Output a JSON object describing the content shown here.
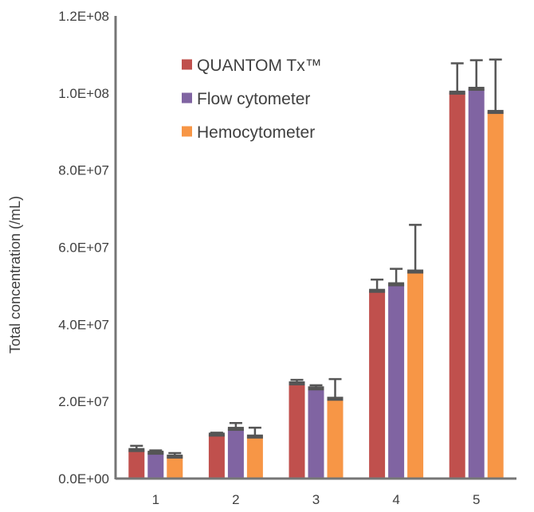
{
  "chart_data": {
    "type": "bar",
    "title": "",
    "xlabel": "",
    "ylabel": "Total concentration (/mL)",
    "ylim": [
      0,
      120000000
    ],
    "yticks": [
      {
        "value": 0,
        "label": "0.0E+00"
      },
      {
        "value": 20000000,
        "label": "2.0E+07"
      },
      {
        "value": 40000000,
        "label": "4.0E+07"
      },
      {
        "value": 60000000,
        "label": "6.0E+07"
      },
      {
        "value": 80000000,
        "label": "8.0E+07"
      },
      {
        "value": 100000000,
        "label": "1.0E+08"
      },
      {
        "value": 120000000,
        "label": "1.2E+08"
      }
    ],
    "categories": [
      "1",
      "2",
      "3",
      "4",
      "5"
    ],
    "legend_position": "top-left",
    "series": [
      {
        "name": "QUANTOM Tx™",
        "color": "#c0504d",
        "values": [
          7500000,
          11500000,
          24800000,
          48800000,
          100200000
        ],
        "errors": [
          1000000,
          400000,
          800000,
          2800000,
          7500000
        ]
      },
      {
        "name": "Flow cytometer",
        "color": "#8064a2",
        "values": [
          6800000,
          13000000,
          23500000,
          50500000,
          101200000
        ],
        "errors": [
          500000,
          1400000,
          700000,
          3900000,
          7300000
        ]
      },
      {
        "name": "Hemocytometer",
        "color": "#f79646",
        "values": [
          5800000,
          11000000,
          20800000,
          53800000,
          95200000
        ],
        "errors": [
          800000,
          2200000,
          5000000,
          12000000,
          13500000
        ]
      }
    ]
  }
}
